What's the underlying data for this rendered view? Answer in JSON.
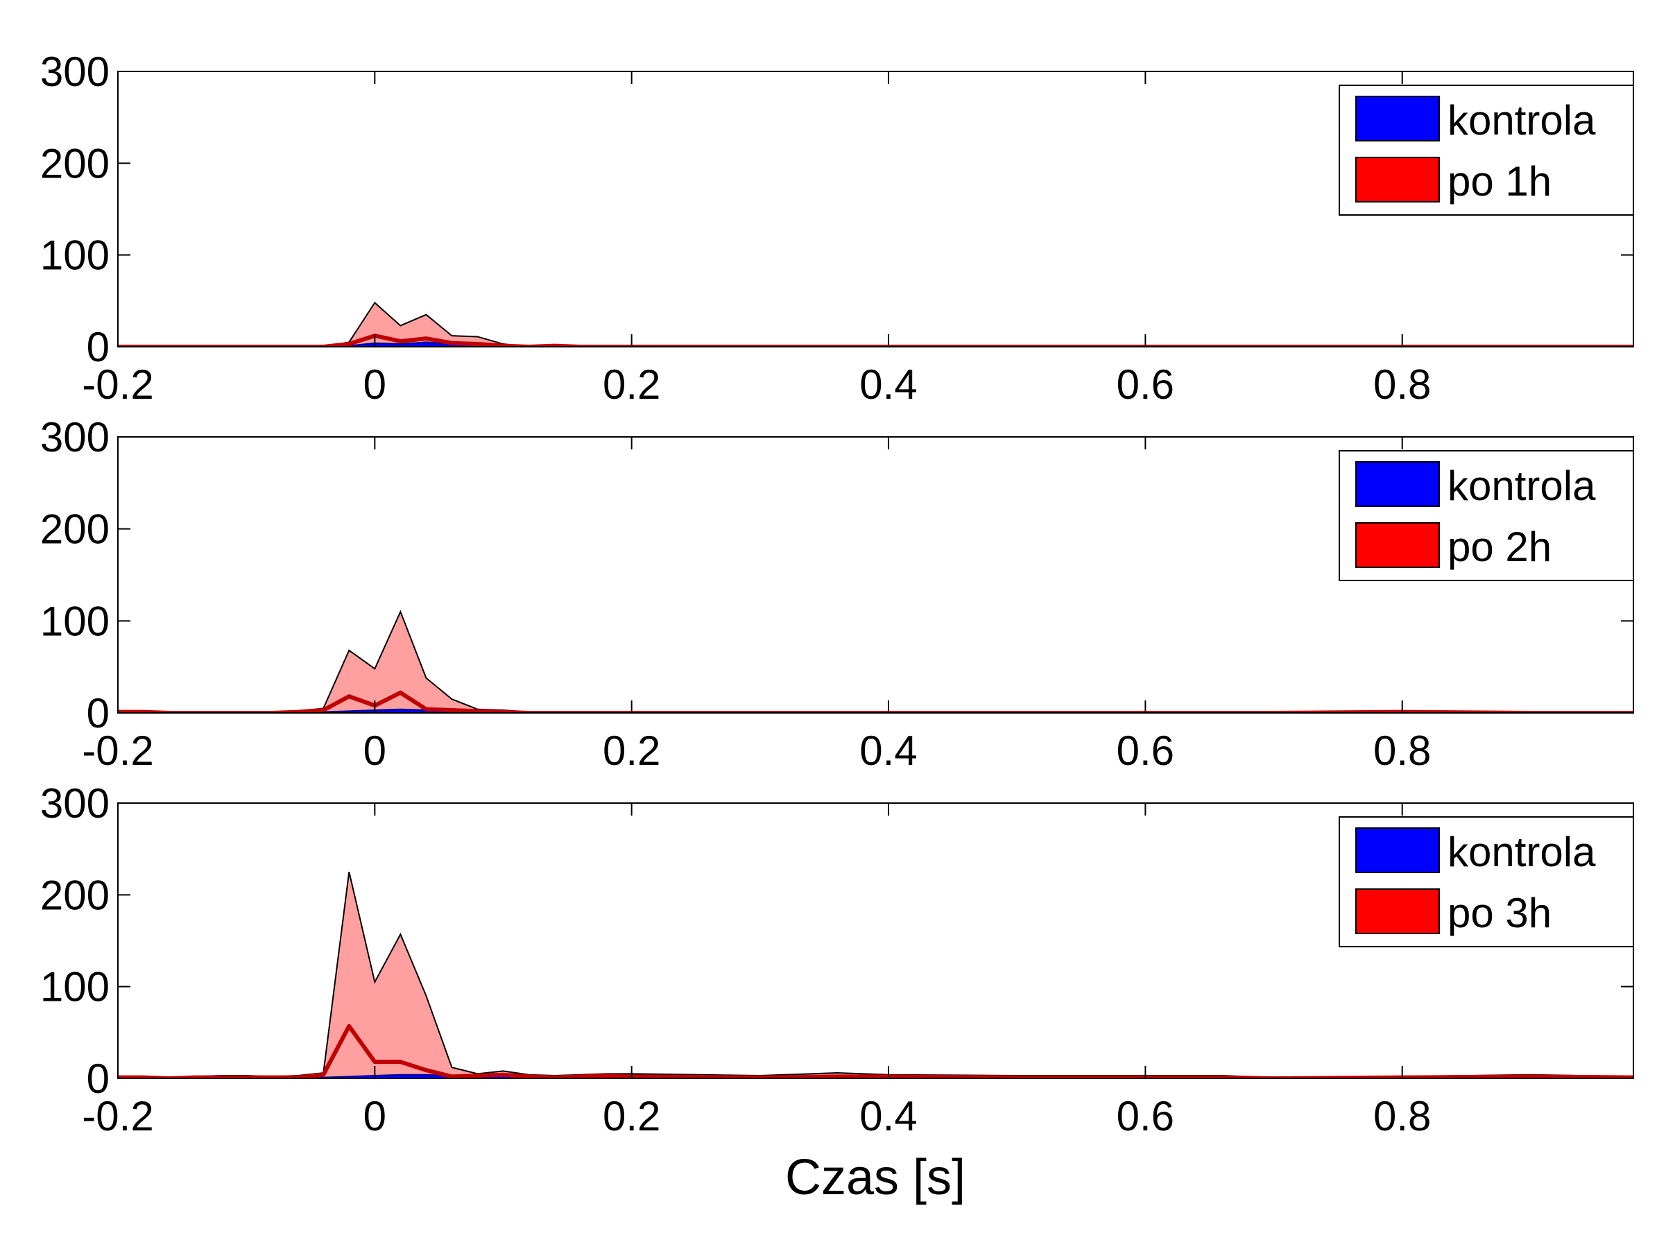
{
  "figure": {
    "xlabel": "Czas [s]"
  },
  "colors": {
    "control": "#0000ff",
    "treated_fill": "#ff0000",
    "band_fill": "#ffa0a0",
    "mean_line": "#c00000",
    "control_line": "#00008b"
  },
  "chart_data": [
    {
      "type": "area",
      "xlim": [
        -0.2,
        0.98
      ],
      "ylim": [
        0,
        300
      ],
      "xticks": [
        "-0.2",
        "0",
        "0.2",
        "0.4",
        "0.6",
        "0.8"
      ],
      "yticks": [
        "0",
        "100",
        "200",
        "300"
      ],
      "grid": false,
      "legend_position": "top-right",
      "legend": [
        "kontrola",
        "po 1h"
      ],
      "x": [
        -0.2,
        -0.18,
        -0.16,
        -0.14,
        -0.12,
        -0.1,
        -0.08,
        -0.06,
        -0.04,
        -0.02,
        0,
        0.02,
        0.04,
        0.06,
        0.08,
        0.1,
        0.12,
        0.14,
        0.16,
        0.18,
        0.2,
        0.3,
        0.4,
        0.5,
        0.6,
        0.7,
        0.8,
        0.9,
        0.98
      ],
      "series": [
        {
          "name": "kontrola",
          "values": [
            0,
            0,
            0,
            0,
            0,
            0,
            0,
            0,
            0,
            1,
            4,
            3,
            5,
            3,
            2,
            2,
            1,
            0,
            0,
            0,
            0,
            0,
            0,
            0,
            0,
            0,
            0,
            0,
            0
          ]
        },
        {
          "values": [
            0,
            0,
            0,
            0,
            0,
            0,
            0,
            0,
            0,
            3,
            12,
            6,
            9,
            4,
            3,
            1,
            0,
            1,
            0,
            0,
            0,
            0,
            0,
            0,
            0,
            0,
            0,
            0,
            0
          ]
        },
        {
          "values": [
            0,
            0,
            0,
            0,
            0,
            0,
            0,
            0,
            0,
            5,
            48,
            23,
            35,
            12,
            11,
            3,
            0,
            2,
            0,
            0,
            0,
            0,
            0,
            0,
            0,
            0,
            0,
            0,
            0
          ]
        }
      ]
    },
    {
      "type": "area",
      "xlim": [
        -0.2,
        0.98
      ],
      "ylim": [
        0,
        300
      ],
      "xticks": [
        "-0.2",
        "0",
        "0.2",
        "0.4",
        "0.6",
        "0.8"
      ],
      "yticks": [
        "0",
        "100",
        "200",
        "300"
      ],
      "grid": false,
      "legend_position": "top-right",
      "legend": [
        "kontrola",
        "po 2h"
      ],
      "x": [
        -0.2,
        -0.18,
        -0.16,
        -0.14,
        -0.12,
        -0.1,
        -0.08,
        -0.06,
        -0.04,
        -0.02,
        0,
        0.02,
        0.04,
        0.06,
        0.08,
        0.1,
        0.12,
        0.14,
        0.16,
        0.18,
        0.2,
        0.3,
        0.4,
        0.5,
        0.6,
        0.7,
        0.8,
        0.9,
        0.98
      ],
      "series": [
        {
          "name": "kontrola",
          "values": [
            0,
            0,
            0,
            0,
            0,
            0,
            0,
            1,
            1,
            2,
            3,
            4,
            3,
            3,
            4,
            3,
            1,
            0,
            0,
            0,
            0,
            0,
            0,
            0,
            0,
            0,
            0,
            0,
            0
          ]
        },
        {
          "values": [
            1,
            1,
            0,
            0,
            0,
            0,
            0,
            1,
            3,
            18,
            8,
            22,
            4,
            3,
            2,
            1,
            0,
            0,
            0,
            0,
            0,
            0,
            0,
            0,
            0,
            0,
            1,
            0,
            0
          ]
        },
        {
          "values": [
            2,
            2,
            1,
            1,
            1,
            1,
            1,
            2,
            5,
            68,
            48,
            110,
            38,
            15,
            4,
            2,
            0,
            1,
            0,
            1,
            1,
            0,
            0,
            0,
            0,
            0,
            2,
            0,
            0
          ]
        }
      ]
    },
    {
      "type": "area",
      "xlim": [
        -0.2,
        0.98
      ],
      "ylim": [
        0,
        300
      ],
      "xticks": [
        "-0.2",
        "0",
        "0.2",
        "0.4",
        "0.6",
        "0.8"
      ],
      "yticks": [
        "0",
        "100",
        "200",
        "300"
      ],
      "grid": false,
      "legend_position": "top-right",
      "legend": [
        "kontrola",
        "po 3h"
      ],
      "xlabel": "Czas [s]",
      "x": [
        -0.2,
        -0.18,
        -0.16,
        -0.14,
        -0.12,
        -0.1,
        -0.08,
        -0.06,
        -0.04,
        -0.02,
        0,
        0.02,
        0.04,
        0.06,
        0.08,
        0.1,
        0.12,
        0.14,
        0.16,
        0.18,
        0.2,
        0.3,
        0.36,
        0.4,
        0.5,
        0.6,
        0.66,
        0.7,
        0.8,
        0.9,
        0.98
      ],
      "series": [
        {
          "name": "kontrola",
          "values": [
            0,
            0,
            0,
            0,
            0,
            0,
            0,
            0,
            1,
            2,
            3,
            4,
            4,
            3,
            3,
            3,
            2,
            1,
            1,
            1,
            1,
            1,
            1,
            1,
            1,
            1,
            1,
            0,
            0,
            1,
            0
          ]
        },
        {
          "values": [
            1,
            1,
            0,
            1,
            1,
            1,
            1,
            1,
            4,
            57,
            18,
            18,
            9,
            2,
            3,
            4,
            2,
            1,
            2,
            3,
            2,
            1,
            2,
            2,
            1,
            1,
            1,
            0,
            1,
            2,
            1
          ]
        },
        {
          "values": [
            2,
            2,
            1,
            2,
            3,
            3,
            2,
            3,
            6,
            225,
            105,
            157,
            90,
            12,
            5,
            8,
            4,
            3,
            4,
            5,
            5,
            3,
            6,
            4,
            3,
            3,
            3,
            1,
            2,
            4,
            2
          ]
        }
      ]
    }
  ]
}
